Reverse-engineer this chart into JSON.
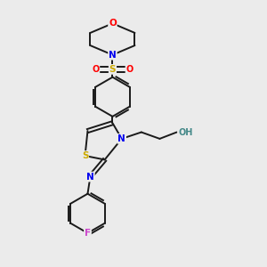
{
  "bg_color": "#ebebeb",
  "bond_color": "#1a1a1a",
  "atom_colors": {
    "O": "#ff0000",
    "N": "#0000ee",
    "S": "#ccaa00",
    "F": "#cc44cc",
    "H": "#448888",
    "C": "#1a1a1a"
  },
  "figsize": [
    3.0,
    3.0
  ],
  "dpi": 100
}
